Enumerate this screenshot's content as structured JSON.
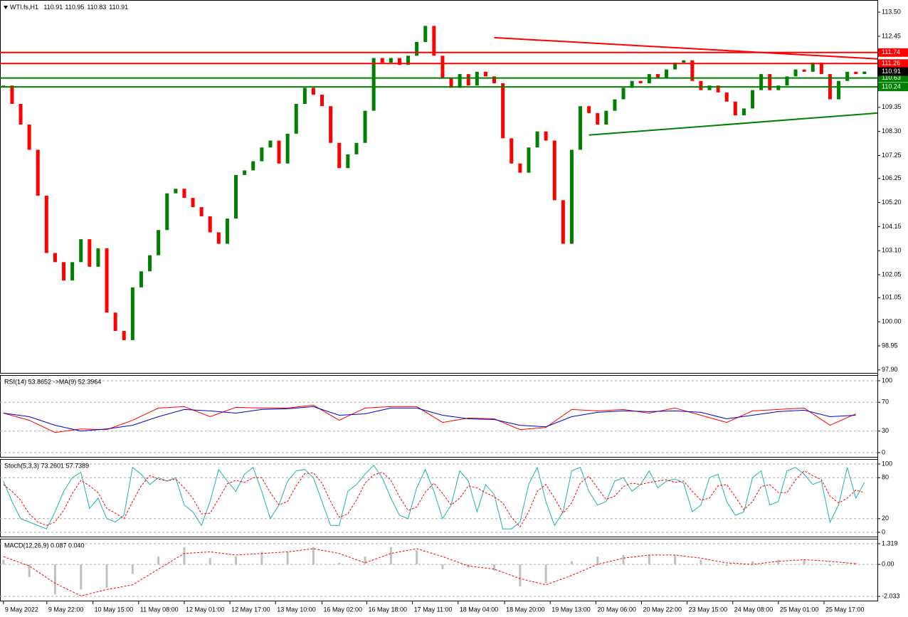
{
  "chart_data": [
    {
      "type": "candlestick",
      "symbol": "WTI.fs,H1",
      "ohlc": [
        110.91,
        110.95,
        110.83,
        110.91
      ],
      "values": [
        110.3,
        109.5,
        108.6,
        107.5,
        105.5,
        103.0,
        102.6,
        101.8,
        102.6,
        103.6,
        102.4,
        103.2,
        100.4,
        99.6,
        99.2,
        101.5,
        102.2,
        102.9,
        104.0,
        105.6,
        105.8,
        105.4,
        105.0,
        104.6,
        103.9,
        103.4,
        104.5,
        106.4,
        106.6,
        107.0,
        107.6,
        107.9,
        106.9,
        108.2,
        109.5,
        110.2,
        109.9,
        109.4,
        107.8,
        106.7,
        107.3,
        107.8,
        109.2,
        111.5,
        111.3,
        111.5,
        111.2,
        111.6,
        112.2,
        112.9,
        111.6,
        110.6,
        110.2,
        110.8,
        110.3,
        110.9,
        110.7,
        110.4,
        108.0,
        106.9,
        106.5,
        107.6,
        108.3,
        107.9,
        105.3,
        103.4,
        107.5,
        109.4,
        109.1,
        108.6,
        109.2,
        109.7,
        110.2,
        110.5,
        110.4,
        110.8,
        110.6,
        111.0,
        111.3,
        111.4,
        110.5,
        110.1,
        110.3,
        110.0,
        109.6,
        109.0,
        109.3,
        110.1,
        110.8,
        110.1,
        110.3,
        110.7,
        111.0,
        110.9,
        111.3,
        110.8,
        109.7,
        110.5,
        110.9,
        110.8,
        110.91
      ],
      "up_color": "#008000",
      "down_color": "#ff0000",
      "xlim": [
        -0.4,
        101.5
      ],
      "ylim": [
        97.74,
        114.03
      ],
      "yticks": [
        {
          "value": 113.5,
          "label": "113.50"
        },
        112.45,
        109.35,
        {
          "value": 108.3,
          "label": "108.30"
        },
        107.25,
        106.25,
        {
          "value": 105.2,
          "label": "105.20"
        },
        104.15,
        {
          "value": 103.1,
          "label": "103.10"
        },
        102.05,
        101.05,
        {
          "value": 100,
          "label": "100.00"
        },
        98.95,
        {
          "value": 97.9,
          "label": "97.90"
        }
      ],
      "xticks": [
        {
          "value": 0,
          "label": "9 May 2022"
        },
        {
          "value": 5.04,
          "label": "9 May 22:00"
        },
        {
          "value": 10.4,
          "label": "10 May 15:00"
        },
        {
          "value": 15.7,
          "label": "11 May 08:00"
        },
        {
          "value": 21.0,
          "label": "12 May 01:00"
        },
        {
          "value": 26.3,
          "label": "12 May 17:00"
        },
        {
          "value": 31.6,
          "label": "13 May 10:00"
        },
        {
          "value": 37.0,
          "label": "16 May 02:00"
        },
        {
          "value": 42.2,
          "label": "16 May 18:00"
        },
        {
          "value": 47.5,
          "label": "17 May 11:00"
        },
        {
          "value": 52.8,
          "label": "18 May 04:00"
        },
        {
          "value": 58.2,
          "label": "18 May 20:00"
        },
        {
          "value": 63.5,
          "label": "19 May 13:00"
        },
        {
          "value": 68.8,
          "label": "20 May 06:00"
        },
        {
          "value": 74.1,
          "label": "20 May 22:00"
        },
        {
          "value": 79.4,
          "label": "23 May 15:00"
        },
        {
          "value": 84.7,
          "label": "24 May 08:00"
        },
        {
          "value": 90.0,
          "label": "25 May 01:00"
        },
        {
          "value": 95.3,
          "label": "25 May 17:00"
        }
      ],
      "levels": [
        {
          "value": 111.74,
          "color": "#ff0000"
        },
        {
          "value": 111.26,
          "color": "#ff0000"
        },
        {
          "value": 110.63,
          "color": "#008000"
        },
        {
          "value": 110.24,
          "color": "#008000"
        }
      ],
      "last": 110.91,
      "trendlines": [
        {
          "color": "#ff0000",
          "x": [
            57,
            101.5
          ],
          "y": [
            112.39,
            111.46
          ]
        },
        {
          "color": "#008000",
          "x": [
            68,
            101.5
          ],
          "y": [
            108.14,
            109.1
          ]
        }
      ]
    },
    {
      "type": "line",
      "title": "RSI(14) 53.8652  ->MA(9) 52.3964",
      "x": [
        0,
        3,
        6,
        9,
        12,
        15,
        18,
        21,
        24,
        27,
        30,
        33,
        36,
        39,
        42,
        45,
        48,
        51,
        54,
        57,
        60,
        63,
        66,
        69,
        72,
        75,
        78,
        81,
        84,
        87,
        90,
        93,
        96,
        99
      ],
      "series": [
        {
          "color": "#ff0000",
          "values": [
            55,
            45,
            28,
            33,
            32,
            45,
            62,
            64,
            50,
            63,
            62,
            62,
            66,
            45,
            62,
            64,
            64,
            42,
            48,
            47,
            32,
            35,
            60,
            58,
            60,
            55,
            62,
            52,
            42,
            58,
            60,
            62,
            38,
            54
          ]
        },
        {
          "color": "#0000cc",
          "values": [
            55,
            50,
            38,
            30,
            33,
            38,
            50,
            60,
            58,
            55,
            60,
            61,
            64,
            52,
            54,
            62,
            62,
            52,
            47,
            46,
            38,
            36,
            50,
            56,
            58,
            57,
            58,
            56,
            47,
            52,
            57,
            59,
            50,
            52
          ]
        }
      ],
      "ylim": [
        -6.9,
        107.9
      ],
      "yticks": [
        100,
        70,
        30,
        0
      ]
    },
    {
      "type": "line",
      "title": "Stoch(5,3,3) 73.2601 57.7389",
      "series": [
        {
          "color": "#20b2aa",
          "values": [
            75,
            45,
            20,
            15,
            10,
            5,
            30,
            60,
            80,
            88,
            35,
            50,
            20,
            15,
            25,
            95,
            85,
            70,
            80,
            75,
            80,
            40,
            30,
            10,
            45,
            92,
            75,
            60,
            85,
            95,
            60,
            20,
            40,
            75,
            90,
            92,
            80,
            45,
            10,
            10,
            60,
            70,
            85,
            98,
            80,
            50,
            25,
            20,
            65,
            92,
            60,
            20,
            40,
            90,
            75,
            30,
            70,
            55,
            5,
            5,
            15,
            70,
            95,
            45,
            10,
            30,
            90,
            95,
            60,
            40,
            45,
            75,
            80,
            60,
            70,
            90,
            65,
            75,
            78,
            72,
            30,
            40,
            80,
            85,
            45,
            25,
            30,
            80,
            90,
            40,
            45,
            90,
            95,
            85,
            70,
            75,
            15,
            40,
            95,
            50,
            73
          ]
        },
        {
          "color": "#ff0000",
          "dashed": true,
          "values": [
            70,
            60,
            47,
            27,
            15,
            10,
            15,
            32,
            57,
            76,
            68,
            58,
            35,
            28,
            20,
            45,
            68,
            83,
            78,
            75,
            78,
            65,
            50,
            27,
            28,
            49,
            71,
            76,
            73,
            80,
            80,
            58,
            40,
            45,
            68,
            86,
            87,
            72,
            45,
            22,
            27,
            47,
            72,
            84,
            88,
            76,
            52,
            32,
            37,
            59,
            72,
            57,
            40,
            50,
            68,
            65,
            58,
            52,
            43,
            22,
            8,
            30,
            60,
            70,
            50,
            28,
            43,
            72,
            82,
            65,
            48,
            53,
            67,
            72,
            70,
            73,
            75,
            77,
            73,
            75,
            60,
            47,
            50,
            68,
            70,
            52,
            33,
            45,
            67,
            70,
            58,
            58,
            77,
            90,
            83,
            77,
            53,
            43,
            50,
            62,
            58
          ]
        }
      ],
      "ylim": [
        -7.3,
        107.3
      ],
      "yticks": [
        100,
        80,
        20,
        0
      ]
    },
    {
      "type": "bar",
      "title": "MACD(12,26,9) 0.087 0.040",
      "x": [
        0,
        3,
        6,
        9,
        12,
        15,
        18,
        21,
        24,
        27,
        30,
        33,
        36,
        39,
        42,
        45,
        48,
        51,
        54,
        57,
        60,
        63,
        66,
        69,
        72,
        75,
        78,
        81,
        84,
        87,
        90,
        93,
        96,
        99
      ],
      "series": [
        {
          "type": "bar",
          "color": "#c0c0c0",
          "values": [
            0.3,
            -0.8,
            -1.9,
            -1.6,
            -1.5,
            -0.6,
            0.5,
            1.1,
            0.4,
            0.5,
            0.8,
            0.8,
            1.1,
            0.1,
            0.5,
            1.1,
            0.9,
            -0.3,
            -0.2,
            -0.4,
            -1.4,
            -1.2,
            0.2,
            0.5,
            0.6,
            0.6,
            0.6,
            0.3,
            -0.1,
            0.2,
            0.3,
            0.3,
            -0.1,
            0.09
          ]
        },
        {
          "type": "line",
          "color": "#ff0000",
          "dashed": true,
          "values": [
            0.5,
            -0.1,
            -1.2,
            -2.0,
            -1.6,
            -1.3,
            -0.3,
            0.7,
            0.8,
            0.6,
            0.7,
            0.8,
            1.0,
            0.7,
            0.1,
            0.7,
            1.0,
            0.5,
            -0.1,
            -0.3,
            -0.9,
            -1.3,
            -0.7,
            0.0,
            0.4,
            0.6,
            0.6,
            0.4,
            0.1,
            0.0,
            0.2,
            0.3,
            0.2,
            0.04
          ]
        }
      ],
      "ylim": [
        -2.35,
        1.636
      ],
      "yticks": [
        1.319,
        {
          "value": 0,
          "label": "0.00"
        },
        -2.033
      ]
    }
  ]
}
